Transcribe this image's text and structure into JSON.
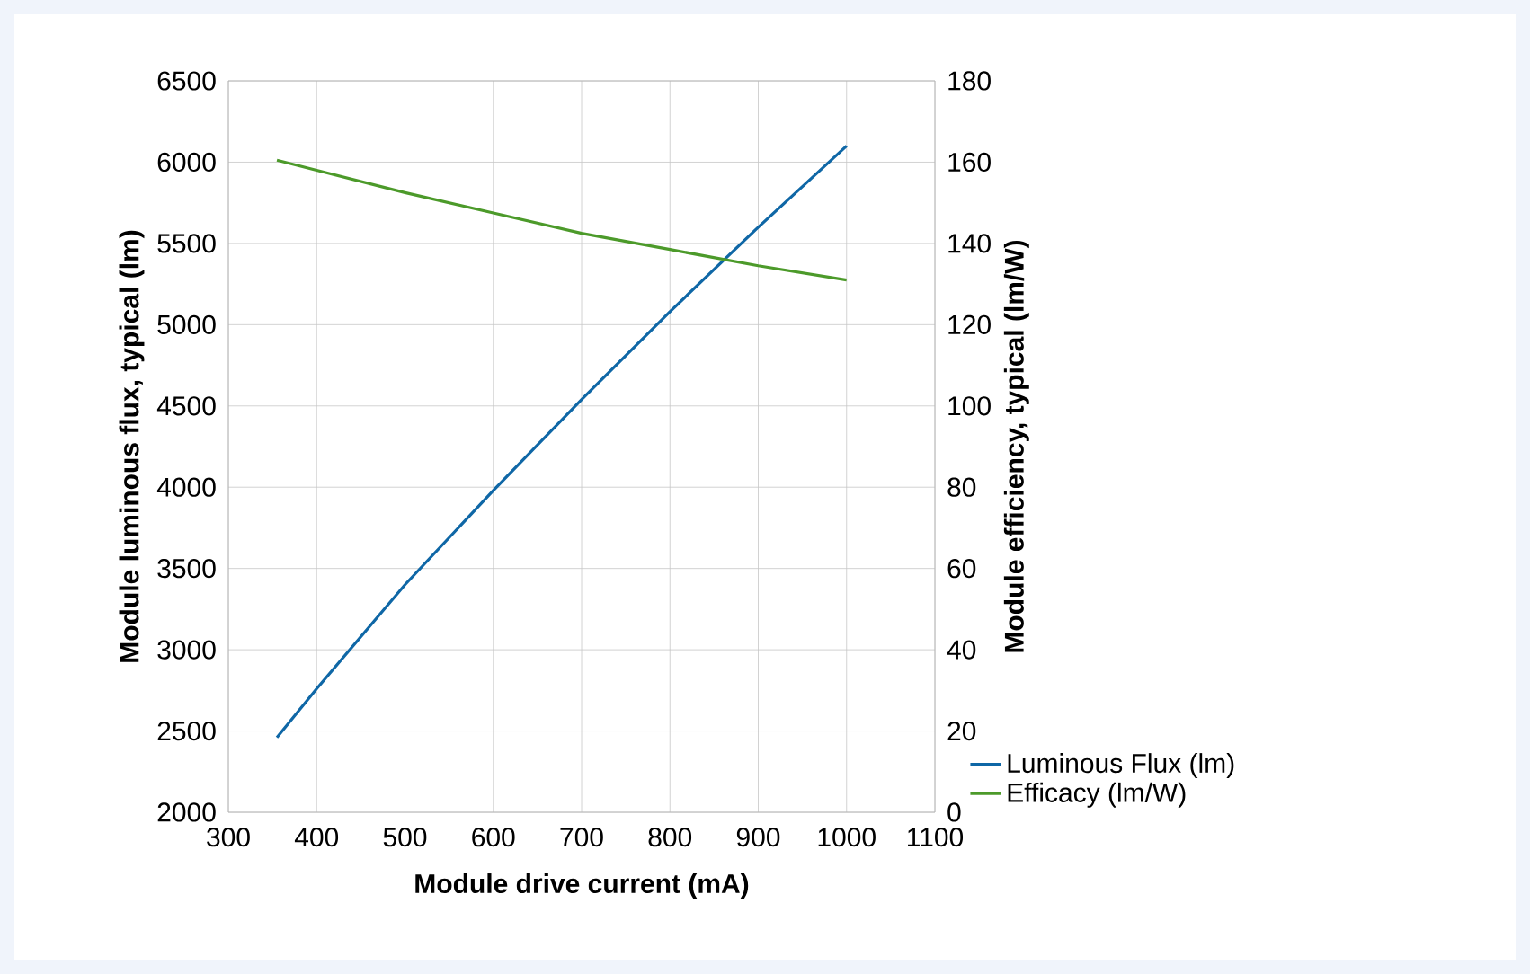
{
  "chart_data": {
    "type": "line",
    "xlabel": "Module drive current (mA)",
    "ylabel": "Module luminous flux, typical (lm)",
    "y2label": "Module efficiency, typical (lm/W)",
    "x": [
      355,
      400,
      500,
      600,
      700,
      800,
      900,
      1000
    ],
    "series": [
      {
        "name": "Luminous Flux (lm)",
        "color": "#0f67a6",
        "values": [
          2460,
          2760,
          3400,
          3980,
          4540,
          5080,
          5600,
          6100
        ]
      },
      {
        "name": "Efficacy (lm/W)",
        "color": "#4c9a2a",
        "axis": "y2",
        "values": [
          160.5,
          158,
          152.5,
          147.5,
          142.5,
          138.5,
          134.5,
          131
        ]
      }
    ],
    "xlim": [
      300,
      1100
    ],
    "xticks": [
      300,
      400,
      500,
      600,
      700,
      800,
      900,
      1000,
      1100
    ],
    "ylim": [
      2000,
      6500
    ],
    "yticks": [
      2000,
      2500,
      3000,
      3500,
      4000,
      4500,
      5000,
      5500,
      6000,
      6500
    ],
    "y2lim": [
      0,
      180
    ],
    "y2ticks": [
      0,
      20,
      40,
      60,
      80,
      100,
      120,
      140,
      160,
      180
    ],
    "grid": true,
    "legend": "bottom right",
    "marker": "none",
    "line_style": "solid"
  }
}
